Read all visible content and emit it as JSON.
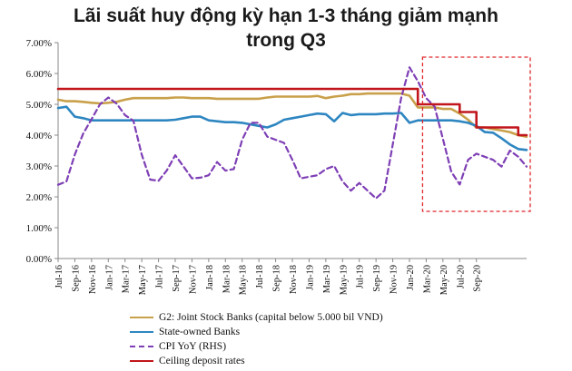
{
  "title": {
    "line1": "Lãi suất huy động kỳ hạn 1-3 tháng giảm mạnh",
    "line2": "trong Q3"
  },
  "colors": {
    "g2": "#C9A04A",
    "state": "#2E86C1",
    "cpi": "#7E3FB5",
    "ceiling": "#C0161C",
    "highlight": "#E0262B",
    "axis": "#888888"
  },
  "chart_data": {
    "type": "line",
    "ylim": [
      0,
      0.07
    ],
    "yticks": [
      "0.00%",
      "1.00%",
      "2.00%",
      "3.00%",
      "4.00%",
      "5.00%",
      "6.00%",
      "7.00%"
    ],
    "x_start": "Jul-16",
    "x_labels": [
      "Jul-16",
      "Sep-16",
      "Nov-16",
      "Jan-17",
      "Mar-17",
      "May-17",
      "Jul-17",
      "Sep-17",
      "Nov-17",
      "Jan-18",
      "Mar-18",
      "May-18",
      "Jul-18",
      "Sep-18",
      "Nov-18",
      "Jan-19",
      "Mar-19",
      "May-19",
      "Jul-19",
      "Sep-19",
      "Nov-19",
      "Jan-20",
      "Mar-20",
      "May-20",
      "Jul-20",
      "Sep-20"
    ],
    "series": [
      {
        "name": "G2: Joint Stock Banks (capital below 5.000 bil VND)",
        "color": "#C9A04A",
        "dash": false,
        "values": [
          0.0515,
          0.051,
          0.051,
          0.0508,
          0.0505,
          0.0503,
          0.0505,
          0.0508,
          0.0515,
          0.052,
          0.052,
          0.052,
          0.052,
          0.052,
          0.0522,
          0.0522,
          0.052,
          0.052,
          0.052,
          0.0518,
          0.0518,
          0.0518,
          0.0518,
          0.0518,
          0.0518,
          0.0522,
          0.0525,
          0.0525,
          0.0525,
          0.0525,
          0.0525,
          0.0527,
          0.052,
          0.0525,
          0.0528,
          0.0533,
          0.0533,
          0.0535,
          0.0535,
          0.0535,
          0.0535,
          0.0535,
          0.0528,
          0.049,
          0.049,
          0.049,
          0.0485,
          0.0485,
          0.047,
          0.045,
          0.0425,
          0.0425,
          0.042,
          0.0415,
          0.041,
          0.04,
          0.0395
        ]
      },
      {
        "name": "State-owned Banks",
        "color": "#2E86C1",
        "dash": false,
        "values": [
          0.0488,
          0.0492,
          0.046,
          0.0455,
          0.0448,
          0.0448,
          0.0448,
          0.0448,
          0.0448,
          0.0448,
          0.0448,
          0.0448,
          0.0448,
          0.0448,
          0.045,
          0.0455,
          0.046,
          0.046,
          0.0448,
          0.0445,
          0.0442,
          0.0442,
          0.044,
          0.0435,
          0.043,
          0.0425,
          0.0435,
          0.045,
          0.0455,
          0.046,
          0.0465,
          0.047,
          0.0468,
          0.0445,
          0.0472,
          0.0465,
          0.0468,
          0.0468,
          0.0468,
          0.047,
          0.047,
          0.0472,
          0.044,
          0.0448,
          0.0448,
          0.0448,
          0.0448,
          0.0448,
          0.0445,
          0.044,
          0.043,
          0.041,
          0.0408,
          0.039,
          0.037,
          0.0355,
          0.0352
        ]
      },
      {
        "name": "CPI YoY  (RHS)",
        "color": "#7E3FB5",
        "dash": true,
        "values": [
          0.0239,
          0.025,
          0.0337,
          0.0405,
          0.0452,
          0.05,
          0.0522,
          0.0502,
          0.0465,
          0.0447,
          0.0337,
          0.0256,
          0.0252,
          0.0286,
          0.0335,
          0.0298,
          0.026,
          0.0262,
          0.027,
          0.0313,
          0.0285,
          0.029,
          0.0385,
          0.044,
          0.044,
          0.0395,
          0.0385,
          0.0375,
          0.032,
          0.026,
          0.0265,
          0.027,
          0.029,
          0.03,
          0.025,
          0.022,
          0.0245,
          0.022,
          0.0195,
          0.022,
          0.037,
          0.052,
          0.062,
          0.0575,
          0.052,
          0.0493,
          0.0387,
          0.0281,
          0.024,
          0.032,
          0.034,
          0.033,
          0.032,
          0.0298,
          0.035,
          0.033,
          0.0298
        ]
      },
      {
        "name": "Ceiling deposit rates",
        "color": "#C0161C",
        "dash": false,
        "step": true,
        "values": [
          0.055,
          0.055,
          0.055,
          0.055,
          0.055,
          0.055,
          0.055,
          0.055,
          0.055,
          0.055,
          0.055,
          0.055,
          0.055,
          0.055,
          0.055,
          0.055,
          0.055,
          0.055,
          0.055,
          0.055,
          0.055,
          0.055,
          0.055,
          0.055,
          0.055,
          0.055,
          0.055,
          0.055,
          0.055,
          0.055,
          0.055,
          0.055,
          0.055,
          0.055,
          0.055,
          0.055,
          0.055,
          0.055,
          0.055,
          0.055,
          0.055,
          0.055,
          0.055,
          0.05,
          0.05,
          0.05,
          0.05,
          0.05,
          0.0475,
          0.0475,
          0.0425,
          0.0425,
          0.0425,
          0.0425,
          0.0425,
          0.04,
          0.04
        ]
      }
    ],
    "legend": "bottom-left",
    "grid": false
  }
}
